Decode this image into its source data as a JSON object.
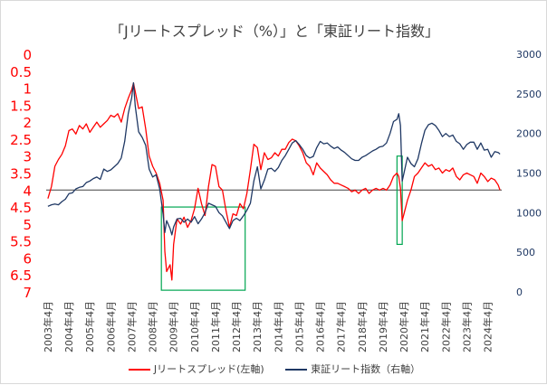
{
  "chart_data": {
    "type": "line",
    "title": "「Jリートスプレッド（%）」と「東証リート指数」",
    "x": [
      "2003年4月",
      "2004年4月",
      "2005年4月",
      "2006年4月",
      "2007年4月",
      "2008年4月",
      "2009年4月",
      "2010年4月",
      "2011年4月",
      "2012年4月",
      "2013年4月",
      "2014年4月",
      "2015年4月",
      "2016年4月",
      "2017年4月",
      "2018年4月",
      "2019年4月",
      "2020年4月",
      "2021年4月",
      "2022年4月",
      "2023年4月",
      "2024年4月"
    ],
    "xlim": [
      "2003-03",
      "2024-12"
    ],
    "left_axis": {
      "ticks": [
        "0",
        "0.5",
        "1",
        "1.5",
        "2",
        "2.5",
        "3",
        "3.5",
        "4",
        "4.5",
        "5",
        "5.5",
        "6",
        "6.5",
        "7"
      ],
      "ylim": [
        0,
        7
      ],
      "inverted": true,
      "color": "#ff0000"
    },
    "right_axis": {
      "ticks": [
        "0",
        "500",
        "1000",
        "1500",
        "2000",
        "2500",
        "3000"
      ],
      "ylim": [
        0,
        3000
      ],
      "color": "#1f3864"
    },
    "reference_line": {
      "axis": "left",
      "value": 4.0
    },
    "series": [
      {
        "name": "Jリートスプレッド(左軸)",
        "axis": "left",
        "color": "#ff0000",
        "points": [
          [
            "2003-04",
            4.25
          ],
          [
            "2003-06",
            3.9
          ],
          [
            "2003-08",
            3.3
          ],
          [
            "2003-10",
            3.1
          ],
          [
            "2003-12",
            2.95
          ],
          [
            "2004-02",
            2.7
          ],
          [
            "2004-04",
            2.25
          ],
          [
            "2004-06",
            2.2
          ],
          [
            "2004-08",
            2.35
          ],
          [
            "2004-10",
            2.1
          ],
          [
            "2004-12",
            2.2
          ],
          [
            "2005-02",
            2.05
          ],
          [
            "2005-04",
            2.3
          ],
          [
            "2005-06",
            2.15
          ],
          [
            "2005-08",
            2.0
          ],
          [
            "2005-10",
            2.15
          ],
          [
            "2005-12",
            2.05
          ],
          [
            "2006-02",
            1.95
          ],
          [
            "2006-04",
            1.8
          ],
          [
            "2006-06",
            1.85
          ],
          [
            "2006-08",
            1.75
          ],
          [
            "2006-10",
            2.0
          ],
          [
            "2006-12",
            1.6
          ],
          [
            "2007-02",
            1.3
          ],
          [
            "2007-04",
            1.05
          ],
          [
            "2007-05",
            0.85
          ],
          [
            "2007-06",
            1.1
          ],
          [
            "2007-08",
            1.6
          ],
          [
            "2007-10",
            1.55
          ],
          [
            "2007-12",
            2.2
          ],
          [
            "2008-02",
            3.0
          ],
          [
            "2008-04",
            3.3
          ],
          [
            "2008-06",
            3.5
          ],
          [
            "2008-08",
            3.8
          ],
          [
            "2008-10",
            4.3
          ],
          [
            "2008-11",
            5.8
          ],
          [
            "2008-12",
            6.4
          ],
          [
            "2009-02",
            6.2
          ],
          [
            "2009-03",
            6.65
          ],
          [
            "2009-04",
            5.6
          ],
          [
            "2009-06",
            4.85
          ],
          [
            "2009-08",
            5.0
          ],
          [
            "2009-10",
            4.8
          ],
          [
            "2009-12",
            5.1
          ],
          [
            "2010-02",
            4.9
          ],
          [
            "2010-04",
            4.55
          ],
          [
            "2010-06",
            3.95
          ],
          [
            "2010-08",
            4.4
          ],
          [
            "2010-10",
            4.75
          ],
          [
            "2010-12",
            3.9
          ],
          [
            "2011-02",
            3.25
          ],
          [
            "2011-04",
            3.3
          ],
          [
            "2011-06",
            3.9
          ],
          [
            "2011-08",
            4.0
          ],
          [
            "2011-10",
            4.6
          ],
          [
            "2011-12",
            5.1
          ],
          [
            "2012-02",
            4.7
          ],
          [
            "2012-04",
            4.75
          ],
          [
            "2012-06",
            4.4
          ],
          [
            "2012-08",
            4.55
          ],
          [
            "2012-10",
            4.1
          ],
          [
            "2012-12",
            3.4
          ],
          [
            "2013-02",
            2.65
          ],
          [
            "2013-04",
            2.75
          ],
          [
            "2013-06",
            3.4
          ],
          [
            "2013-08",
            2.9
          ],
          [
            "2013-10",
            3.1
          ],
          [
            "2013-12",
            3.05
          ],
          [
            "2014-02",
            2.9
          ],
          [
            "2014-04",
            3.0
          ],
          [
            "2014-06",
            2.8
          ],
          [
            "2014-08",
            2.8
          ],
          [
            "2014-10",
            2.6
          ],
          [
            "2014-12",
            2.5
          ],
          [
            "2015-02",
            2.55
          ],
          [
            "2015-04",
            2.7
          ],
          [
            "2015-06",
            2.9
          ],
          [
            "2015-08",
            3.2
          ],
          [
            "2015-10",
            3.3
          ],
          [
            "2015-12",
            3.55
          ],
          [
            "2016-02",
            3.2
          ],
          [
            "2016-04",
            3.35
          ],
          [
            "2016-06",
            3.45
          ],
          [
            "2016-08",
            3.55
          ],
          [
            "2016-10",
            3.7
          ],
          [
            "2016-12",
            3.8
          ],
          [
            "2017-02",
            3.8
          ],
          [
            "2017-04",
            3.85
          ],
          [
            "2017-06",
            3.9
          ],
          [
            "2017-08",
            3.95
          ],
          [
            "2017-10",
            4.05
          ],
          [
            "2017-12",
            4.0
          ],
          [
            "2018-02",
            4.1
          ],
          [
            "2018-04",
            4.0
          ],
          [
            "2018-06",
            3.95
          ],
          [
            "2018-08",
            4.1
          ],
          [
            "2018-10",
            4.0
          ],
          [
            "2018-12",
            3.95
          ],
          [
            "2019-02",
            4.0
          ],
          [
            "2019-04",
            3.95
          ],
          [
            "2019-06",
            4.0
          ],
          [
            "2019-08",
            3.85
          ],
          [
            "2019-10",
            3.6
          ],
          [
            "2019-12",
            3.5
          ],
          [
            "2020-01",
            3.6
          ],
          [
            "2020-02",
            3.95
          ],
          [
            "2020-03",
            4.9
          ],
          [
            "2020-04",
            4.7
          ],
          [
            "2020-06",
            4.3
          ],
          [
            "2020-08",
            4.0
          ],
          [
            "2020-10",
            3.6
          ],
          [
            "2020-12",
            3.5
          ],
          [
            "2021-02",
            3.35
          ],
          [
            "2021-04",
            3.2
          ],
          [
            "2021-06",
            3.3
          ],
          [
            "2021-08",
            3.25
          ],
          [
            "2021-10",
            3.4
          ],
          [
            "2021-12",
            3.35
          ],
          [
            "2022-02",
            3.5
          ],
          [
            "2022-04",
            3.4
          ],
          [
            "2022-06",
            3.45
          ],
          [
            "2022-08",
            3.35
          ],
          [
            "2022-10",
            3.6
          ],
          [
            "2022-12",
            3.7
          ],
          [
            "2023-02",
            3.55
          ],
          [
            "2023-04",
            3.5
          ],
          [
            "2023-06",
            3.55
          ],
          [
            "2023-08",
            3.6
          ],
          [
            "2023-10",
            3.8
          ],
          [
            "2023-12",
            3.5
          ],
          [
            "2024-02",
            3.6
          ],
          [
            "2024-04",
            3.75
          ],
          [
            "2024-06",
            3.65
          ],
          [
            "2024-08",
            3.7
          ],
          [
            "2024-10",
            3.85
          ],
          [
            "2024-11",
            4.0
          ]
        ]
      },
      {
        "name": "東証リート指数（右軸）",
        "axis": "right",
        "color": "#1f3864",
        "points": [
          [
            "2003-04",
            1080
          ],
          [
            "2003-06",
            1100
          ],
          [
            "2003-08",
            1110
          ],
          [
            "2003-10",
            1100
          ],
          [
            "2003-12",
            1140
          ],
          [
            "2004-02",
            1170
          ],
          [
            "2004-04",
            1240
          ],
          [
            "2004-06",
            1250
          ],
          [
            "2004-08",
            1300
          ],
          [
            "2004-10",
            1320
          ],
          [
            "2004-12",
            1330
          ],
          [
            "2005-02",
            1380
          ],
          [
            "2005-04",
            1400
          ],
          [
            "2005-06",
            1430
          ],
          [
            "2005-08",
            1450
          ],
          [
            "2005-10",
            1420
          ],
          [
            "2005-12",
            1550
          ],
          [
            "2006-02",
            1520
          ],
          [
            "2006-04",
            1540
          ],
          [
            "2006-06",
            1580
          ],
          [
            "2006-08",
            1620
          ],
          [
            "2006-10",
            1690
          ],
          [
            "2006-12",
            1900
          ],
          [
            "2007-02",
            2250
          ],
          [
            "2007-04",
            2450
          ],
          [
            "2007-05",
            2640
          ],
          [
            "2007-06",
            2350
          ],
          [
            "2007-08",
            2020
          ],
          [
            "2007-10",
            1950
          ],
          [
            "2007-12",
            1850
          ],
          [
            "2008-02",
            1550
          ],
          [
            "2008-04",
            1450
          ],
          [
            "2008-06",
            1480
          ],
          [
            "2008-08",
            1300
          ],
          [
            "2008-10",
            980
          ],
          [
            "2008-11",
            750
          ],
          [
            "2008-12",
            900
          ],
          [
            "2009-02",
            800
          ],
          [
            "2009-03",
            720
          ],
          [
            "2009-04",
            820
          ],
          [
            "2009-06",
            920
          ],
          [
            "2009-08",
            930
          ],
          [
            "2009-10",
            880
          ],
          [
            "2009-12",
            920
          ],
          [
            "2010-02",
            880
          ],
          [
            "2010-04",
            950
          ],
          [
            "2010-06",
            860
          ],
          [
            "2010-08",
            920
          ],
          [
            "2010-10",
            1000
          ],
          [
            "2010-12",
            1120
          ],
          [
            "2011-02",
            1100
          ],
          [
            "2011-04",
            1080
          ],
          [
            "2011-06",
            1000
          ],
          [
            "2011-08",
            960
          ],
          [
            "2011-10",
            880
          ],
          [
            "2011-12",
            800
          ],
          [
            "2012-02",
            900
          ],
          [
            "2012-04",
            930
          ],
          [
            "2012-06",
            900
          ],
          [
            "2012-08",
            960
          ],
          [
            "2012-10",
            1030
          ],
          [
            "2012-12",
            1120
          ],
          [
            "2013-02",
            1400
          ],
          [
            "2013-04",
            1580
          ],
          [
            "2013-06",
            1300
          ],
          [
            "2013-08",
            1410
          ],
          [
            "2013-10",
            1550
          ],
          [
            "2013-12",
            1560
          ],
          [
            "2014-02",
            1520
          ],
          [
            "2014-04",
            1570
          ],
          [
            "2014-06",
            1660
          ],
          [
            "2014-08",
            1720
          ],
          [
            "2014-10",
            1800
          ],
          [
            "2014-12",
            1880
          ],
          [
            "2015-02",
            1910
          ],
          [
            "2015-04",
            1860
          ],
          [
            "2015-06",
            1800
          ],
          [
            "2015-08",
            1720
          ],
          [
            "2015-10",
            1690
          ],
          [
            "2015-12",
            1710
          ],
          [
            "2016-02",
            1820
          ],
          [
            "2016-04",
            1900
          ],
          [
            "2016-06",
            1870
          ],
          [
            "2016-08",
            1880
          ],
          [
            "2016-10",
            1840
          ],
          [
            "2016-12",
            1810
          ],
          [
            "2017-02",
            1830
          ],
          [
            "2017-04",
            1790
          ],
          [
            "2017-06",
            1760
          ],
          [
            "2017-08",
            1720
          ],
          [
            "2017-10",
            1680
          ],
          [
            "2017-12",
            1660
          ],
          [
            "2018-02",
            1660
          ],
          [
            "2018-04",
            1700
          ],
          [
            "2018-06",
            1720
          ],
          [
            "2018-08",
            1750
          ],
          [
            "2018-10",
            1780
          ],
          [
            "2018-12",
            1800
          ],
          [
            "2019-02",
            1830
          ],
          [
            "2019-04",
            1840
          ],
          [
            "2019-06",
            1880
          ],
          [
            "2019-08",
            2000
          ],
          [
            "2019-10",
            2150
          ],
          [
            "2019-12",
            2180
          ],
          [
            "2020-01",
            2250
          ],
          [
            "2020-02",
            2100
          ],
          [
            "2020-03",
            1400
          ],
          [
            "2020-04",
            1500
          ],
          [
            "2020-06",
            1700
          ],
          [
            "2020-08",
            1620
          ],
          [
            "2020-10",
            1580
          ],
          [
            "2020-12",
            1680
          ],
          [
            "2021-02",
            1870
          ],
          [
            "2021-04",
            2040
          ],
          [
            "2021-06",
            2110
          ],
          [
            "2021-08",
            2130
          ],
          [
            "2021-10",
            2100
          ],
          [
            "2021-12",
            2040
          ],
          [
            "2022-02",
            1960
          ],
          [
            "2022-04",
            2000
          ],
          [
            "2022-06",
            1960
          ],
          [
            "2022-08",
            1980
          ],
          [
            "2022-10",
            1900
          ],
          [
            "2022-12",
            1870
          ],
          [
            "2023-02",
            1800
          ],
          [
            "2023-04",
            1860
          ],
          [
            "2023-06",
            1890
          ],
          [
            "2023-08",
            1890
          ],
          [
            "2023-10",
            1800
          ],
          [
            "2023-12",
            1880
          ],
          [
            "2024-02",
            1790
          ],
          [
            "2024-04",
            1800
          ],
          [
            "2024-06",
            1700
          ],
          [
            "2024-08",
            1770
          ],
          [
            "2024-10",
            1760
          ],
          [
            "2024-11",
            1740
          ]
        ]
      }
    ],
    "highlight_boxes": [
      {
        "color": "#00a651",
        "x_range": [
          "2008-09",
          "2012-09"
        ],
        "left_y_range": [
          4.5,
          6.95
        ]
      },
      {
        "color": "#00a651",
        "x_range": [
          "2019-12",
          "2020-03"
        ],
        "left_y_range": [
          3.0,
          5.6
        ]
      }
    ],
    "grid": false,
    "legend_position": "bottom"
  }
}
